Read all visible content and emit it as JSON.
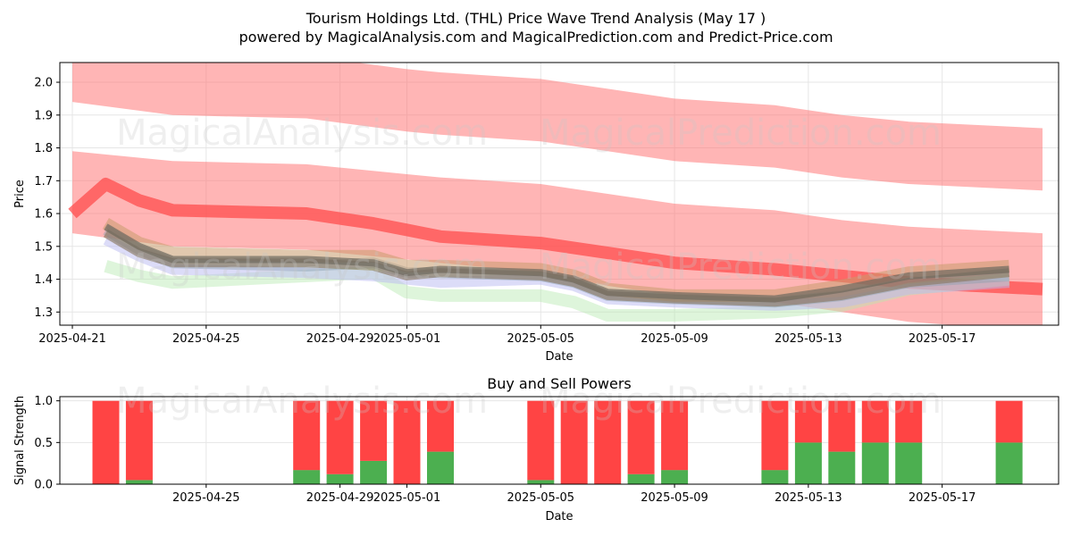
{
  "page": {
    "title_line1": "Tourism Holdings Ltd. (THL) Price Wave Trend Analysis (May 17 )",
    "title_line2": "powered by MagicalAnalysis.com and MagicalPrediction.com and Predict-Price.com",
    "watermark_left": "MagicalAnalysis.com",
    "watermark_right": "MagicalPrediction.com"
  },
  "colors": {
    "upper_band": "#ff6b6b",
    "buy": "#4caf50",
    "sell": "#ff4444",
    "grid": "#e6e6e6"
  },
  "chart_data": [
    {
      "type": "area",
      "xlabel": "Date",
      "ylabel": "Price",
      "xlim": [
        "2025-04-21",
        "2025-05-20"
      ],
      "ylim": [
        1.26,
        2.06
      ],
      "grid": true,
      "x_ticks": [
        "2025-04-21",
        "2025-04-25",
        "2025-04-29",
        "2025-05-01",
        "2025-05-05",
        "2025-05-09",
        "2025-05-13",
        "2025-05-17"
      ],
      "y_ticks": [
        1.3,
        1.4,
        1.5,
        1.6,
        1.7,
        1.8,
        1.9,
        2.0
      ],
      "bands": [
        {
          "color": "#ff6b6b",
          "opacity": 0.5,
          "x": [
            "2025-04-21",
            "2025-04-24",
            "2025-04-28",
            "2025-05-01",
            "2025-05-02",
            "2025-05-05",
            "2025-05-07",
            "2025-05-09",
            "2025-05-12",
            "2025-05-14",
            "2025-05-16",
            "2025-05-20"
          ],
          "upper": [
            2.11,
            2.1,
            2.08,
            2.04,
            2.03,
            2.01,
            1.98,
            1.95,
            1.93,
            1.9,
            1.88,
            1.86
          ],
          "lower": [
            1.94,
            1.9,
            1.89,
            1.85,
            1.84,
            1.82,
            1.79,
            1.76,
            1.74,
            1.71,
            1.69,
            1.67
          ]
        },
        {
          "color": "#ff6b6b",
          "opacity": 0.5,
          "x": [
            "2025-04-21",
            "2025-04-24",
            "2025-04-28",
            "2025-05-01",
            "2025-05-02",
            "2025-05-05",
            "2025-05-07",
            "2025-05-09",
            "2025-05-12",
            "2025-05-14",
            "2025-05-16",
            "2025-05-20"
          ],
          "upper": [
            1.79,
            1.76,
            1.75,
            1.72,
            1.71,
            1.69,
            1.66,
            1.63,
            1.61,
            1.58,
            1.56,
            1.54
          ],
          "lower": [
            1.54,
            1.5,
            1.49,
            1.46,
            1.45,
            1.42,
            1.38,
            1.35,
            1.33,
            1.3,
            1.27,
            1.24
          ]
        }
      ],
      "series": [
        {
          "color": "#ff4d4d",
          "width": 14,
          "opacity": 0.75,
          "x": [
            "2025-04-21",
            "2025-04-22",
            "2025-04-23",
            "2025-04-24",
            "2025-04-28",
            "2025-04-30",
            "2025-05-01",
            "2025-05-02",
            "2025-05-05",
            "2025-05-07",
            "2025-05-09",
            "2025-05-12",
            "2025-05-14",
            "2025-05-16",
            "2025-05-20"
          ],
          "values": [
            1.6,
            1.69,
            1.64,
            1.61,
            1.6,
            1.57,
            1.55,
            1.53,
            1.51,
            1.48,
            1.45,
            1.43,
            1.41,
            1.39,
            1.37
          ]
        },
        {
          "color": "#b5e8b0",
          "width": 14,
          "opacity": 0.45,
          "x": [
            "2025-04-22",
            "2025-04-23",
            "2025-04-24",
            "2025-04-28",
            "2025-04-30",
            "2025-05-01",
            "2025-05-02",
            "2025-05-05",
            "2025-05-06",
            "2025-05-07",
            "2025-05-09",
            "2025-05-12",
            "2025-05-14",
            "2025-05-16",
            "2025-05-19"
          ],
          "values": [
            1.44,
            1.41,
            1.39,
            1.41,
            1.42,
            1.36,
            1.35,
            1.35,
            1.33,
            1.29,
            1.29,
            1.3,
            1.32,
            1.37,
            1.4
          ]
        },
        {
          "color": "#b9b9f2",
          "width": 12,
          "opacity": 0.5,
          "x": [
            "2025-04-22",
            "2025-04-23",
            "2025-04-24",
            "2025-04-28",
            "2025-04-30",
            "2025-05-01",
            "2025-05-02",
            "2025-05-05",
            "2025-05-06",
            "2025-05-07",
            "2025-05-09",
            "2025-05-12",
            "2025-05-14",
            "2025-05-16",
            "2025-05-19"
          ],
          "values": [
            1.52,
            1.47,
            1.43,
            1.42,
            1.41,
            1.4,
            1.39,
            1.4,
            1.38,
            1.34,
            1.33,
            1.32,
            1.33,
            1.37,
            1.39
          ]
        },
        {
          "color": "#8aa0b0",
          "width": 12,
          "opacity": 0.45,
          "x": [
            "2025-04-22",
            "2025-04-23",
            "2025-04-24",
            "2025-04-28",
            "2025-04-30",
            "2025-05-01",
            "2025-05-02",
            "2025-05-05",
            "2025-05-06",
            "2025-05-07",
            "2025-05-09",
            "2025-05-12",
            "2025-05-14",
            "2025-05-16",
            "2025-05-19"
          ],
          "values": [
            1.55,
            1.49,
            1.45,
            1.44,
            1.45,
            1.42,
            1.42,
            1.41,
            1.39,
            1.35,
            1.34,
            1.33,
            1.35,
            1.39,
            1.41
          ]
        },
        {
          "color": "#c99a6b",
          "width": 14,
          "opacity": 0.55,
          "x": [
            "2025-04-22",
            "2025-04-23",
            "2025-04-24",
            "2025-04-28",
            "2025-04-30",
            "2025-05-01",
            "2025-05-02",
            "2025-05-05",
            "2025-05-06",
            "2025-05-07",
            "2025-05-09",
            "2025-05-12",
            "2025-05-14",
            "2025-05-16",
            "2025-05-19"
          ],
          "values": [
            1.57,
            1.51,
            1.48,
            1.47,
            1.47,
            1.44,
            1.44,
            1.43,
            1.41,
            1.37,
            1.35,
            1.35,
            1.38,
            1.42,
            1.44
          ]
        },
        {
          "color": "#8b7a64",
          "width": 10,
          "opacity": 0.65,
          "x": [
            "2025-04-22",
            "2025-04-23",
            "2025-04-24",
            "2025-04-28",
            "2025-04-30",
            "2025-05-01",
            "2025-05-02",
            "2025-05-05",
            "2025-05-06",
            "2025-05-07",
            "2025-05-09",
            "2025-05-12",
            "2025-05-14",
            "2025-05-16",
            "2025-05-19"
          ],
          "values": [
            1.54,
            1.48,
            1.45,
            1.45,
            1.44,
            1.41,
            1.42,
            1.41,
            1.39,
            1.35,
            1.34,
            1.33,
            1.35,
            1.39,
            1.42
          ]
        },
        {
          "color": "#6e6a60",
          "width": 8,
          "opacity": 0.7,
          "x": [
            "2025-04-22",
            "2025-04-23",
            "2025-04-24",
            "2025-04-28",
            "2025-04-30",
            "2025-05-01",
            "2025-05-02",
            "2025-05-05",
            "2025-05-06",
            "2025-05-07",
            "2025-05-09",
            "2025-05-12",
            "2025-05-14",
            "2025-05-16",
            "2025-05-19"
          ],
          "values": [
            1.56,
            1.5,
            1.46,
            1.46,
            1.45,
            1.42,
            1.43,
            1.42,
            1.4,
            1.36,
            1.35,
            1.34,
            1.37,
            1.41,
            1.43
          ]
        }
      ]
    },
    {
      "type": "bar",
      "title": "Buy and Sell Powers",
      "xlabel": "Date",
      "ylabel": "Signal Strength",
      "xlim": [
        "2025-04-21",
        "2025-05-20"
      ],
      "ylim": [
        0,
        1.05
      ],
      "grid": true,
      "x_ticks": [
        "2025-04-25",
        "2025-04-29",
        "2025-05-01",
        "2025-05-05",
        "2025-05-09",
        "2025-05-13",
        "2025-05-17"
      ],
      "y_ticks": [
        0.0,
        0.5,
        1.0
      ],
      "stacked": true,
      "categories": [
        "2025-04-22",
        "2025-04-23",
        "2025-04-28",
        "2025-04-29",
        "2025-04-30",
        "2025-05-01",
        "2025-05-02",
        "2025-05-05",
        "2025-05-06",
        "2025-05-07",
        "2025-05-08",
        "2025-05-09",
        "2025-05-12",
        "2025-05-13",
        "2025-05-14",
        "2025-05-15",
        "2025-05-16",
        "2025-05-19"
      ],
      "series": [
        {
          "color": "#4caf50",
          "values": [
            0.0,
            0.05,
            0.17,
            0.12,
            0.28,
            0.0,
            0.39,
            0.05,
            0.0,
            0.0,
            0.12,
            0.17,
            0.17,
            0.5,
            0.39,
            0.5,
            0.5,
            0.5
          ]
        },
        {
          "color": "#ff4444",
          "values": [
            1.0,
            0.95,
            0.83,
            0.88,
            0.72,
            1.0,
            0.61,
            0.95,
            1.0,
            1.0,
            0.88,
            0.83,
            0.83,
            0.5,
            0.61,
            0.5,
            0.5,
            0.5
          ]
        }
      ]
    }
  ]
}
